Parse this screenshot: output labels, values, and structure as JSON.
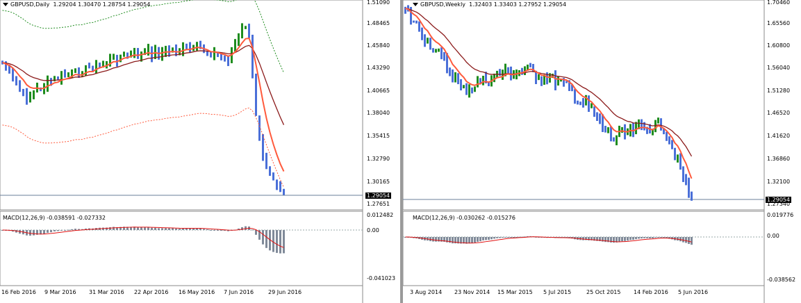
{
  "left": {
    "symbol_title": "GBPUSD,Daily",
    "ohlc": "1.29204 1.30470 1.28754 1.29054",
    "price_labels": [
      "1.51090",
      "1.48465",
      "1.45840",
      "1.43290",
      "1.40665",
      "1.38040",
      "1.35415",
      "1.32790",
      "1.30165",
      "1.27651"
    ],
    "current_price": "1.29054",
    "macd_title": "MACD(12,26,9) -0.038591 -0.027332",
    "macd_labels": [
      "0.012482",
      "0.00",
      "-0.041023"
    ],
    "date_labels": [
      "16 Feb 2016",
      "9 Mar 2016",
      "31 Mar 2016",
      "22 Apr 2016",
      "16 May 2016",
      "7 Jun 2016",
      "29 Jun 2016"
    ]
  },
  "right": {
    "symbol_title": "GBPUSD,Weekly",
    "ohlc": "1.32403 1.33403 1.27952 1.29054",
    "price_labels": [
      "1.70460",
      "1.65560",
      "1.60800",
      "1.56040",
      "1.51280",
      "1.46520",
      "1.41620",
      "1.36860",
      "1.32100",
      "1.27340"
    ],
    "current_price": "1.29054",
    "macd_title": "MACD(12,26,9) -0.030262 -0.015276",
    "macd_labels": [
      "0.019776",
      "0.00",
      "-0.038562"
    ],
    "date_labels": [
      "3 Aug 2014",
      "23 Nov 2014",
      "15 Mar 2015",
      "5 Jul 2015",
      "25 Oct 2015",
      "14 Feb 2016",
      "5 Jun 2016"
    ]
  },
  "colors": {
    "bull": "#1e8c1e",
    "bear": "#4a6fd8",
    "ema_fast": "#ff5a3c",
    "ema_slow": "#8b1a1a",
    "macd_hist": "#808a99",
    "macd_signal": "#e01010",
    "envelope": "#1e8c1e"
  }
}
